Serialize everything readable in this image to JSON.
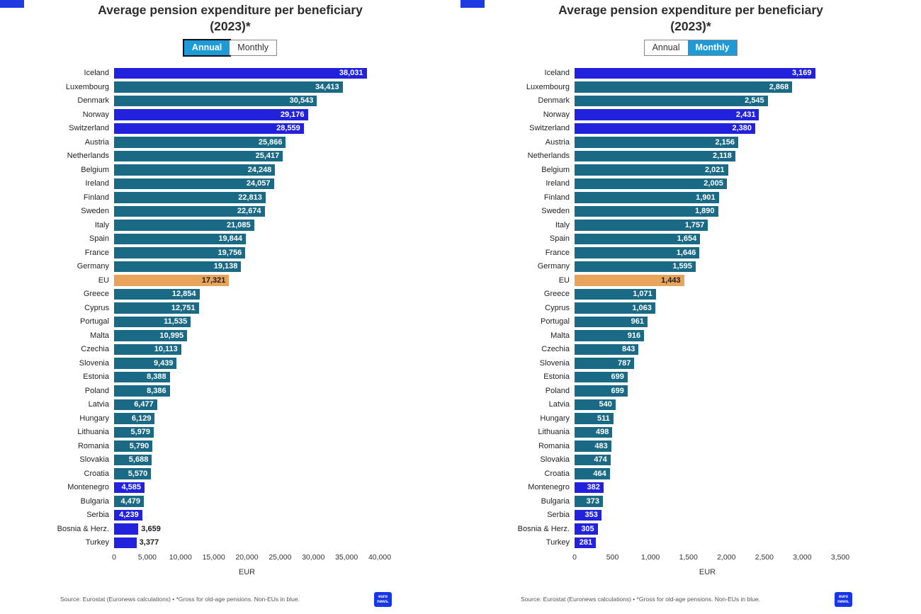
{
  "colors": {
    "member": "#1a6a86",
    "noneu": "#2222dd",
    "eu": "#e9a45c",
    "toggle_active": "#1e9bd7",
    "brand_blue": "#1d3be0"
  },
  "chart_data": [
    {
      "type": "bar",
      "orientation": "horizontal",
      "title": "Average pension expenditure per beneficiary",
      "subtitle": "(2023)*",
      "xlabel": "EUR",
      "xlim": [
        0,
        40000
      ],
      "x_ticks": {
        "labels": [
          "0",
          "5,000",
          "10,000",
          "15,000",
          "20,000",
          "25,000",
          "30,000",
          "35,000",
          "40,000"
        ],
        "values": [
          0,
          5000,
          10000,
          15000,
          20000,
          25000,
          30000,
          35000,
          40000
        ]
      },
      "categories": [
        "Iceland",
        "Luxembourg",
        "Denmark",
        "Norway",
        "Switzerland",
        "Austria",
        "Netherlands",
        "Belgium",
        "Ireland",
        "Finland",
        "Sweden",
        "Italy",
        "Spain",
        "France",
        "Germany",
        "EU",
        "Greece",
        "Cyprus",
        "Portugal",
        "Malta",
        "Czechia",
        "Slovenia",
        "Estonia",
        "Poland",
        "Latvia",
        "Hungary",
        "Lithuania",
        "Romania",
        "Slovakia",
        "Croatia",
        "Montenegro",
        "Bulgaria",
        "Serbia",
        "Bosnia & Herz.",
        "Turkey"
      ],
      "values": [
        38031,
        34413,
        30543,
        29176,
        28559,
        25866,
        25417,
        24248,
        24057,
        22813,
        22674,
        21085,
        19844,
        19756,
        19138,
        17321,
        12854,
        12751,
        11535,
        10995,
        10113,
        9439,
        8388,
        8386,
        6477,
        6129,
        5979,
        5790,
        5688,
        5570,
        4585,
        4479,
        4239,
        3659,
        3377
      ],
      "value_labels": [
        "38,031",
        "34,413",
        "30,543",
        "29,176",
        "28,559",
        "25,866",
        "25,417",
        "24,248",
        "24,057",
        "22,813",
        "22,674",
        "21,085",
        "19,844",
        "19,756",
        "19,138",
        "17,321",
        "12,854",
        "12,751",
        "11,535",
        "10,995",
        "10,113",
        "9,439",
        "8,388",
        "8,386",
        "6,477",
        "6,129",
        "5,979",
        "5,790",
        "5,688",
        "5,570",
        "4,585",
        "4,479",
        "4,239",
        "3,659",
        "3,377"
      ],
      "bar_colors": [
        "noneu",
        "member",
        "member",
        "noneu",
        "noneu",
        "member",
        "member",
        "member",
        "member",
        "member",
        "member",
        "member",
        "member",
        "member",
        "member",
        "eu",
        "member",
        "member",
        "member",
        "member",
        "member",
        "member",
        "member",
        "member",
        "member",
        "member",
        "member",
        "member",
        "member",
        "member",
        "noneu",
        "member",
        "noneu",
        "noneu",
        "noneu"
      ],
      "outside_value_labels": [
        "Bosnia & Herz.",
        "Turkey"
      ]
    },
    {
      "type": "bar",
      "orientation": "horizontal",
      "title": "Average pension expenditure per beneficiary",
      "subtitle": "(2023)*",
      "xlabel": "EUR",
      "xlim": [
        0,
        3500
      ],
      "x_ticks": {
        "labels": [
          "0",
          "500",
          "1,000",
          "1,500",
          "2,000",
          "2,500",
          "3,000",
          "3,500"
        ],
        "values": [
          0,
          500,
          1000,
          1500,
          2000,
          2500,
          3000,
          3500
        ]
      },
      "categories": [
        "Iceland",
        "Luxembourg",
        "Denmark",
        "Norway",
        "Switzerland",
        "Austria",
        "Netherlands",
        "Belgium",
        "Ireland",
        "Finland",
        "Sweden",
        "Italy",
        "Spain",
        "France",
        "Germany",
        "EU",
        "Greece",
        "Cyprus",
        "Portugal",
        "Malta",
        "Czechia",
        "Slovenia",
        "Estonia",
        "Poland",
        "Latvia",
        "Hungary",
        "Lithuania",
        "Romania",
        "Slovakia",
        "Croatia",
        "Montenegro",
        "Bulgaria",
        "Serbia",
        "Bosnia & Herz.",
        "Turkey"
      ],
      "values": [
        3169,
        2868,
        2545,
        2431,
        2380,
        2156,
        2118,
        2021,
        2005,
        1901,
        1890,
        1757,
        1654,
        1646,
        1595,
        1443,
        1071,
        1063,
        961,
        916,
        843,
        787,
        699,
        699,
        540,
        511,
        498,
        483,
        474,
        464,
        382,
        373,
        353,
        305,
        281
      ],
      "value_labels": [
        "3,169",
        "2,868",
        "2,545",
        "2,431",
        "2,380",
        "2,156",
        "2,118",
        "2,021",
        "2,005",
        "1,901",
        "1,890",
        "1,757",
        "1,654",
        "1,646",
        "1,595",
        "1,443",
        "1,071",
        "1,063",
        "961",
        "916",
        "843",
        "787",
        "699",
        "699",
        "540",
        "511",
        "498",
        "483",
        "474",
        "464",
        "382",
        "373",
        "353",
        "305",
        "281"
      ],
      "bar_colors": [
        "noneu",
        "member",
        "member",
        "noneu",
        "noneu",
        "member",
        "member",
        "member",
        "member",
        "member",
        "member",
        "member",
        "member",
        "member",
        "member",
        "eu",
        "member",
        "member",
        "member",
        "member",
        "member",
        "member",
        "member",
        "member",
        "member",
        "member",
        "member",
        "member",
        "member",
        "member",
        "noneu",
        "member",
        "noneu",
        "noneu",
        "noneu"
      ],
      "outside_value_labels": []
    }
  ],
  "panels": [
    {
      "toggle": {
        "options": [
          "Annual",
          "Monthly"
        ],
        "active": "Annual",
        "focused": true
      },
      "source": "Source: Eurostat (Euronews calculations) • *Gross for old-age pensions. Non-EUs in blue.",
      "logo": {
        "line1": "euro",
        "line2": "news."
      }
    },
    {
      "toggle": {
        "options": [
          "Annual",
          "Monthly"
        ],
        "active": "Monthly",
        "focused": false
      },
      "source": "Source: Eurostat (Euronews calculations) • *Gross for old-age pensions. Non-EUs in blue.",
      "logo": {
        "line1": "euro",
        "line2": "news."
      }
    }
  ]
}
